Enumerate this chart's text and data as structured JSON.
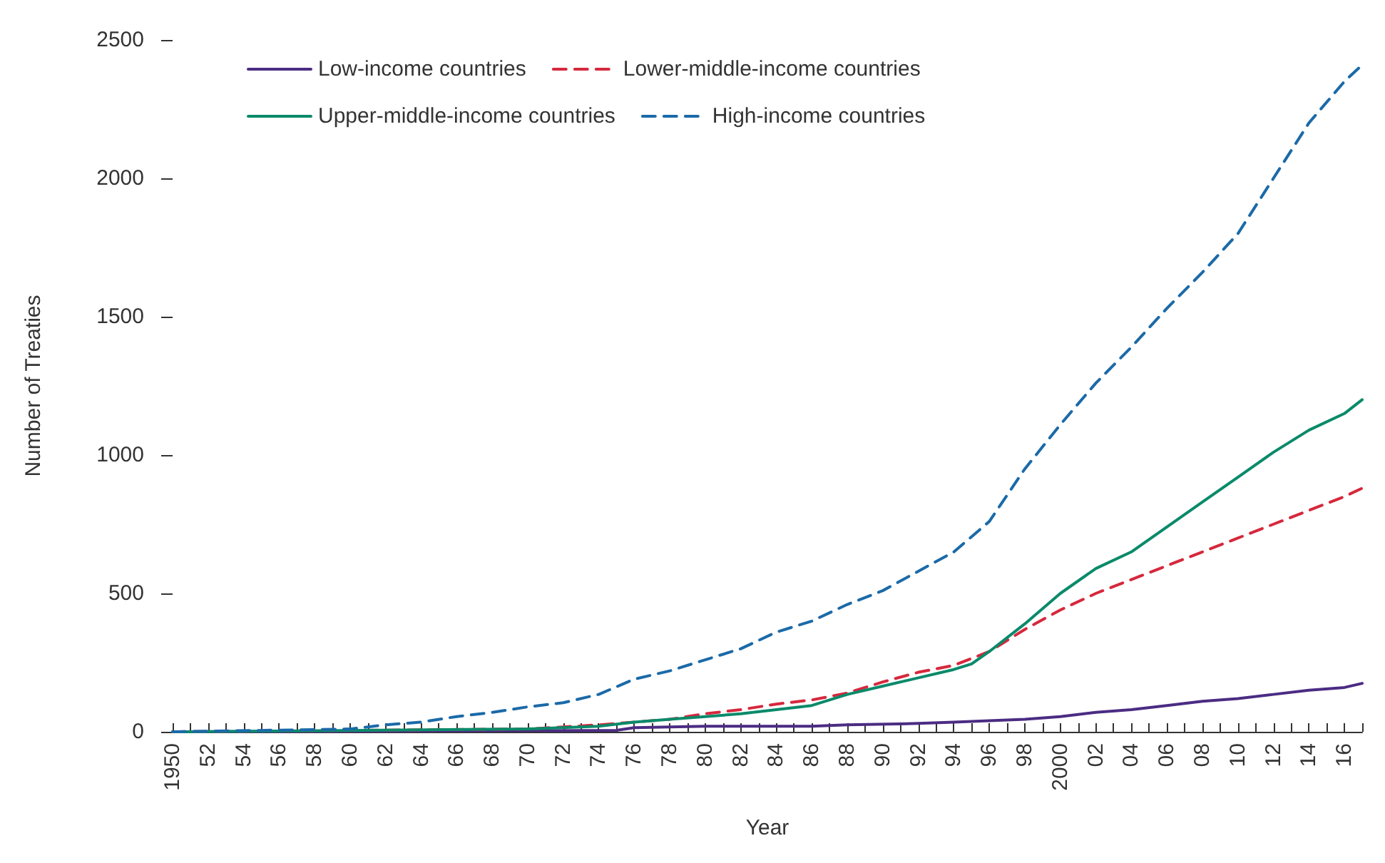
{
  "chart_data": {
    "type": "line",
    "xlabel": "Year",
    "ylabel": "Number of Treaties",
    "xlim": [
      1950,
      2017
    ],
    "ylim": [
      0,
      2500
    ],
    "yticks": [
      0,
      500,
      1000,
      1500,
      2000,
      2500
    ],
    "xticks": [
      {
        "value": 1950,
        "label": "1950"
      },
      {
        "value": 1951,
        "label": null
      },
      {
        "value": 1952,
        "label": "52"
      },
      {
        "value": 1953,
        "label": null
      },
      {
        "value": 1954,
        "label": "54"
      },
      {
        "value": 1955,
        "label": null
      },
      {
        "value": 1956,
        "label": "56"
      },
      {
        "value": 1957,
        "label": null
      },
      {
        "value": 1958,
        "label": "58"
      },
      {
        "value": 1959,
        "label": null
      },
      {
        "value": 1960,
        "label": "60"
      },
      {
        "value": 1961,
        "label": null
      },
      {
        "value": 1962,
        "label": "62"
      },
      {
        "value": 1963,
        "label": null
      },
      {
        "value": 1964,
        "label": "64"
      },
      {
        "value": 1965,
        "label": null
      },
      {
        "value": 1966,
        "label": "66"
      },
      {
        "value": 1967,
        "label": null
      },
      {
        "value": 1968,
        "label": "68"
      },
      {
        "value": 1969,
        "label": null
      },
      {
        "value": 1970,
        "label": "70"
      },
      {
        "value": 1971,
        "label": null
      },
      {
        "value": 1972,
        "label": "72"
      },
      {
        "value": 1973,
        "label": null
      },
      {
        "value": 1974,
        "label": "74"
      },
      {
        "value": 1975,
        "label": null
      },
      {
        "value": 1976,
        "label": "76"
      },
      {
        "value": 1977,
        "label": null
      },
      {
        "value": 1978,
        "label": "78"
      },
      {
        "value": 1979,
        "label": null
      },
      {
        "value": 1980,
        "label": "80"
      },
      {
        "value": 1981,
        "label": null
      },
      {
        "value": 1982,
        "label": "82"
      },
      {
        "value": 1983,
        "label": null
      },
      {
        "value": 1984,
        "label": "84"
      },
      {
        "value": 1985,
        "label": null
      },
      {
        "value": 1986,
        "label": "86"
      },
      {
        "value": 1987,
        "label": null
      },
      {
        "value": 1988,
        "label": "88"
      },
      {
        "value": 1989,
        "label": null
      },
      {
        "value": 1990,
        "label": "90"
      },
      {
        "value": 1991,
        "label": null
      },
      {
        "value": 1992,
        "label": "92"
      },
      {
        "value": 1993,
        "label": null
      },
      {
        "value": 1994,
        "label": "94"
      },
      {
        "value": 1995,
        "label": null
      },
      {
        "value": 1996,
        "label": "96"
      },
      {
        "value": 1997,
        "label": null
      },
      {
        "value": 1998,
        "label": "98"
      },
      {
        "value": 1999,
        "label": null
      },
      {
        "value": 2000,
        "label": "2000"
      },
      {
        "value": 2001,
        "label": null
      },
      {
        "value": 2002,
        "label": "02"
      },
      {
        "value": 2003,
        "label": null
      },
      {
        "value": 2004,
        "label": "04"
      },
      {
        "value": 2005,
        "label": null
      },
      {
        "value": 2006,
        "label": "06"
      },
      {
        "value": 2007,
        "label": null
      },
      {
        "value": 2008,
        "label": "08"
      },
      {
        "value": 2009,
        "label": null
      },
      {
        "value": 2010,
        "label": "10"
      },
      {
        "value": 2011,
        "label": null
      },
      {
        "value": 2012,
        "label": "12"
      },
      {
        "value": 2013,
        "label": null
      },
      {
        "value": 2014,
        "label": "14"
      },
      {
        "value": 2015,
        "label": null
      },
      {
        "value": 2016,
        "label": "16"
      },
      {
        "value": 2017,
        "label": null
      }
    ],
    "grid": false,
    "legend": "top",
    "marker": "none",
    "series": [
      {
        "name": "Low-income countries",
        "color": "#4b2c83",
        "line_style": "solid",
        "x": [
          1950,
          1975,
          1976,
          1980,
          1986,
          1988,
          1992,
          1994,
          1996,
          1998,
          2000,
          2002,
          2004,
          2006,
          2008,
          2010,
          2012,
          2014,
          2016,
          2017
        ],
        "values": [
          0,
          5,
          15,
          20,
          20,
          25,
          30,
          35,
          40,
          45,
          55,
          70,
          80,
          95,
          110,
          120,
          135,
          150,
          160,
          175
        ]
      },
      {
        "name": "Lower-middle-income countries",
        "color": "#d6283c",
        "line_style": "dashed",
        "x": [
          1950,
          1970,
          1974,
          1976,
          1978,
          1980,
          1982,
          1984,
          1986,
          1988,
          1990,
          1992,
          1994,
          1996,
          1998,
          2000,
          2002,
          2004,
          2006,
          2008,
          2010,
          2012,
          2014,
          2016,
          2017
        ],
        "values": [
          0,
          10,
          25,
          35,
          45,
          65,
          80,
          100,
          115,
          140,
          180,
          215,
          240,
          290,
          370,
          440,
          500,
          550,
          600,
          650,
          700,
          750,
          800,
          850,
          880
        ]
      },
      {
        "name": "Upper-middle-income countries",
        "color": "#0a8a6a",
        "line_style": "solid",
        "x": [
          1950,
          1970,
          1974,
          1976,
          1978,
          1980,
          1982,
          1984,
          1986,
          1988,
          1990,
          1992,
          1994,
          1995,
          1996,
          1998,
          2000,
          2002,
          2004,
          2006,
          2008,
          2010,
          2012,
          2014,
          2016,
          2017
        ],
        "values": [
          0,
          10,
          20,
          35,
          45,
          55,
          65,
          80,
          95,
          135,
          165,
          195,
          225,
          245,
          290,
          390,
          500,
          590,
          650,
          740,
          830,
          920,
          1010,
          1090,
          1150,
          1200
        ]
      },
      {
        "name": "High-income countries",
        "color": "#1b6aa8",
        "line_style": "dashed",
        "x": [
          1950,
          1960,
          1962,
          1964,
          1966,
          1968,
          1970,
          1972,
          1974,
          1976,
          1978,
          1980,
          1982,
          1984,
          1986,
          1988,
          1990,
          1992,
          1994,
          1996,
          1998,
          2000,
          2002,
          2004,
          2006,
          2008,
          2010,
          2012,
          2014,
          2016,
          2017
        ],
        "values": [
          0,
          10,
          25,
          35,
          55,
          70,
          90,
          105,
          135,
          190,
          220,
          260,
          300,
          360,
          400,
          460,
          510,
          580,
          650,
          760,
          950,
          1110,
          1260,
          1390,
          1530,
          1660,
          1800,
          2000,
          2200,
          2350,
          2410
        ]
      }
    ]
  }
}
